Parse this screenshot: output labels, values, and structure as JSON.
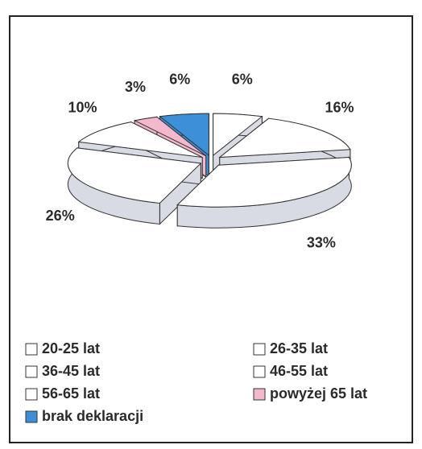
{
  "chart_data": {
    "type": "pie",
    "categories": [
      "20-25 lat",
      "26-35 lat",
      "36-45 lat",
      "46-55 lat",
      "56-65 lat",
      "powyżej 65 lat",
      "brak deklaracji"
    ],
    "values": [
      6,
      16,
      33,
      26,
      10,
      3,
      6
    ],
    "value_labels": [
      "6%",
      "16%",
      "33%",
      "26%",
      "10%",
      "3%",
      "6%"
    ],
    "colors": [
      "#ffffff",
      "#ffffff",
      "#ffffff",
      "#ffffff",
      "#ffffff",
      "#f4b8cc",
      "#3d8fd8"
    ],
    "legend": "bottom"
  }
}
